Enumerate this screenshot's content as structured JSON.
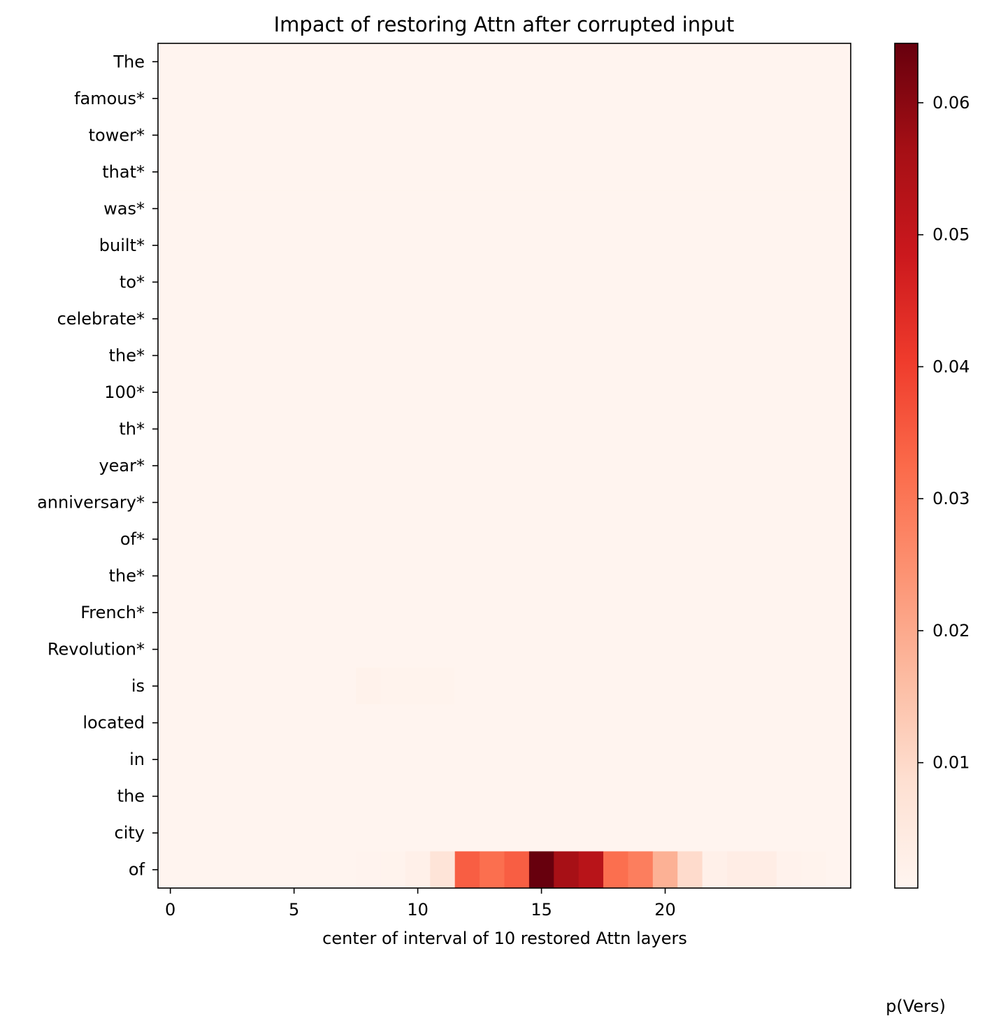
{
  "chart_data": {
    "type": "heatmap",
    "title": "Impact of restoring Attn after corrupted input",
    "xlabel": "center of interval of 10 restored Attn layers",
    "colorbar_label": "p(Vers)",
    "colormap": "Reds",
    "x_ticks": [
      0,
      5,
      10,
      15,
      20
    ],
    "colorbar_ticks": [
      0.01,
      0.02,
      0.03,
      0.04,
      0.05,
      0.06
    ],
    "colorbar_range": [
      0.0005,
      0.0645
    ],
    "columns": 28,
    "rows": [
      "The",
      "famous*",
      "tower*",
      "that*",
      "was*",
      "built*",
      "to*",
      "celebrate*",
      "the*",
      "100*",
      "th*",
      "year*",
      "anniversary*",
      "of*",
      "the*",
      "French*",
      "Revolution*",
      "is",
      "located",
      "in",
      "the",
      "city",
      "of"
    ],
    "baseline_value": 0.0008,
    "cells": [
      {
        "row": 17,
        "col": 8,
        "value": 0.0018
      },
      {
        "row": 17,
        "col": 9,
        "value": 0.0013
      },
      {
        "row": 17,
        "col": 10,
        "value": 0.0013
      },
      {
        "row": 17,
        "col": 11,
        "value": 0.0012
      },
      {
        "row": 22,
        "col": 8,
        "value": 0.0011
      },
      {
        "row": 22,
        "col": 9,
        "value": 0.0012
      },
      {
        "row": 22,
        "col": 10,
        "value": 0.0025
      },
      {
        "row": 22,
        "col": 11,
        "value": 0.0068
      },
      {
        "row": 22,
        "col": 12,
        "value": 0.0345
      },
      {
        "row": 22,
        "col": 13,
        "value": 0.0315
      },
      {
        "row": 22,
        "col": 14,
        "value": 0.0345
      },
      {
        "row": 22,
        "col": 15,
        "value": 0.0645
      },
      {
        "row": 22,
        "col": 16,
        "value": 0.056
      },
      {
        "row": 22,
        "col": 17,
        "value": 0.0525
      },
      {
        "row": 22,
        "col": 18,
        "value": 0.0315
      },
      {
        "row": 22,
        "col": 19,
        "value": 0.0285
      },
      {
        "row": 22,
        "col": 20,
        "value": 0.0185
      },
      {
        "row": 22,
        "col": 21,
        "value": 0.0095
      },
      {
        "row": 22,
        "col": 22,
        "value": 0.0025
      },
      {
        "row": 22,
        "col": 23,
        "value": 0.0035
      },
      {
        "row": 22,
        "col": 24,
        "value": 0.0035
      },
      {
        "row": 22,
        "col": 25,
        "value": 0.0015
      },
      {
        "row": 22,
        "col": 26,
        "value": 0.0012
      }
    ]
  }
}
